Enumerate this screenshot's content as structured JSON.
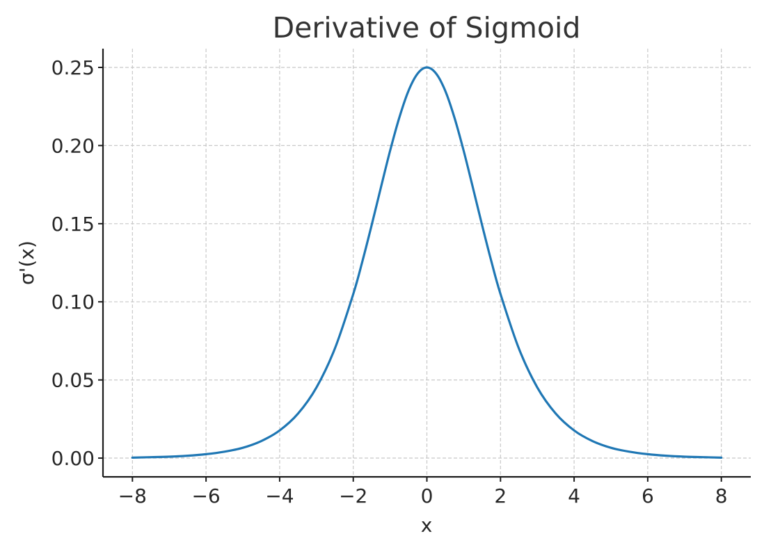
{
  "chart_data": {
    "type": "line",
    "title": "Derivative of Sigmoid",
    "xlabel": "x",
    "ylabel": "σ'(x)",
    "xlim": [
      -8.8,
      8.8
    ],
    "ylim": [
      -0.012,
      0.262
    ],
    "x_ticks": [
      -8,
      -6,
      -4,
      -2,
      0,
      2,
      4,
      6,
      8
    ],
    "x_tick_labels": [
      "−8",
      "−6",
      "−4",
      "−2",
      "0",
      "2",
      "4",
      "6",
      "8"
    ],
    "y_ticks": [
      0.0,
      0.05,
      0.1,
      0.15,
      0.2,
      0.25
    ],
    "y_tick_labels": [
      "0.00",
      "0.05",
      "0.10",
      "0.15",
      "0.20",
      "0.25"
    ],
    "grid": true,
    "series": [
      {
        "color": "#1f77b4",
        "x": [
          -8,
          -7.5,
          -7,
          -6.5,
          -6,
          -5.5,
          -5,
          -4.5,
          -4,
          -3.5,
          -3,
          -2.5,
          -2,
          -1.75,
          -1.5,
          -1.25,
          -1,
          -0.75,
          -0.5,
          -0.25,
          0,
          0.25,
          0.5,
          0.75,
          1,
          1.25,
          1.5,
          1.75,
          2,
          2.5,
          3,
          3.5,
          4,
          4.5,
          5,
          5.5,
          6,
          6.5,
          7,
          7.5,
          8
        ],
        "y": [
          0.0003,
          0.0006,
          0.0009,
          0.0015,
          0.0025,
          0.0041,
          0.0066,
          0.0109,
          0.0177,
          0.0285,
          0.0452,
          0.0701,
          0.105,
          0.1261,
          0.1491,
          0.1731,
          0.1966,
          0.2178,
          0.235,
          0.2461,
          0.25,
          0.2461,
          0.235,
          0.2178,
          0.1966,
          0.1731,
          0.1491,
          0.1261,
          0.105,
          0.0701,
          0.0452,
          0.0285,
          0.0177,
          0.0109,
          0.0066,
          0.0041,
          0.0025,
          0.0015,
          0.0009,
          0.0006,
          0.0003
        ]
      }
    ]
  }
}
